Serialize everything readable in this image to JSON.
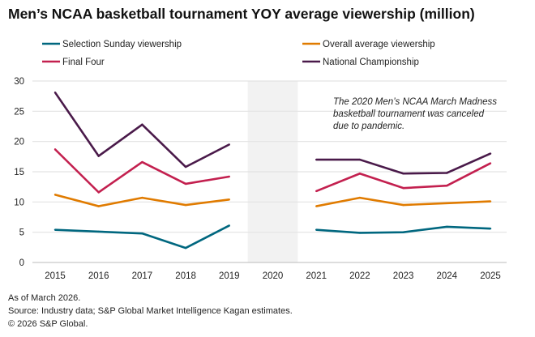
{
  "chart_data": {
    "type": "line",
    "title": "Men’s NCAA basketball tournament YOY average viewership (million)",
    "x": [
      "2015",
      "2016",
      "2017",
      "2018",
      "2019",
      "2020",
      "2021",
      "2022",
      "2023",
      "2024",
      "2025"
    ],
    "ylim": [
      0,
      30
    ],
    "yticks": [
      0,
      5,
      10,
      15,
      20,
      25,
      30
    ],
    "grid": true,
    "legend_placement": "top",
    "shaded_category": "2020",
    "annotation": "The 2020 Men’s NCAA March Madness basketball tournament was canceled due to pandemic.",
    "series": [
      {
        "name": "Selection Sunday viewership",
        "color": "#00677f",
        "values": [
          5.4,
          5.1,
          4.8,
          2.4,
          6.1,
          null,
          5.4,
          4.9,
          5.0,
          5.9,
          5.6
        ]
      },
      {
        "name": "Overall average viewership",
        "color": "#e07b00",
        "values": [
          11.2,
          9.3,
          10.7,
          9.5,
          10.4,
          null,
          9.3,
          10.7,
          9.5,
          9.8,
          10.1
        ]
      },
      {
        "name": "Final Four",
        "color": "#c3204f",
        "values": [
          18.7,
          11.6,
          16.6,
          13.0,
          14.2,
          null,
          11.8,
          14.7,
          12.3,
          12.7,
          16.4
        ]
      },
      {
        "name": "National Championship",
        "color": "#4a1a4a",
        "values": [
          28.1,
          17.6,
          22.8,
          15.8,
          19.5,
          null,
          17.0,
          17.0,
          14.7,
          14.8,
          18.0
        ]
      }
    ]
  },
  "footer": {
    "note": "As of March 2026.",
    "source": "Source: Industry data; S&P Global Market Intelligence Kagan estimates.",
    "copyright": "© 2026 S&P Global."
  }
}
